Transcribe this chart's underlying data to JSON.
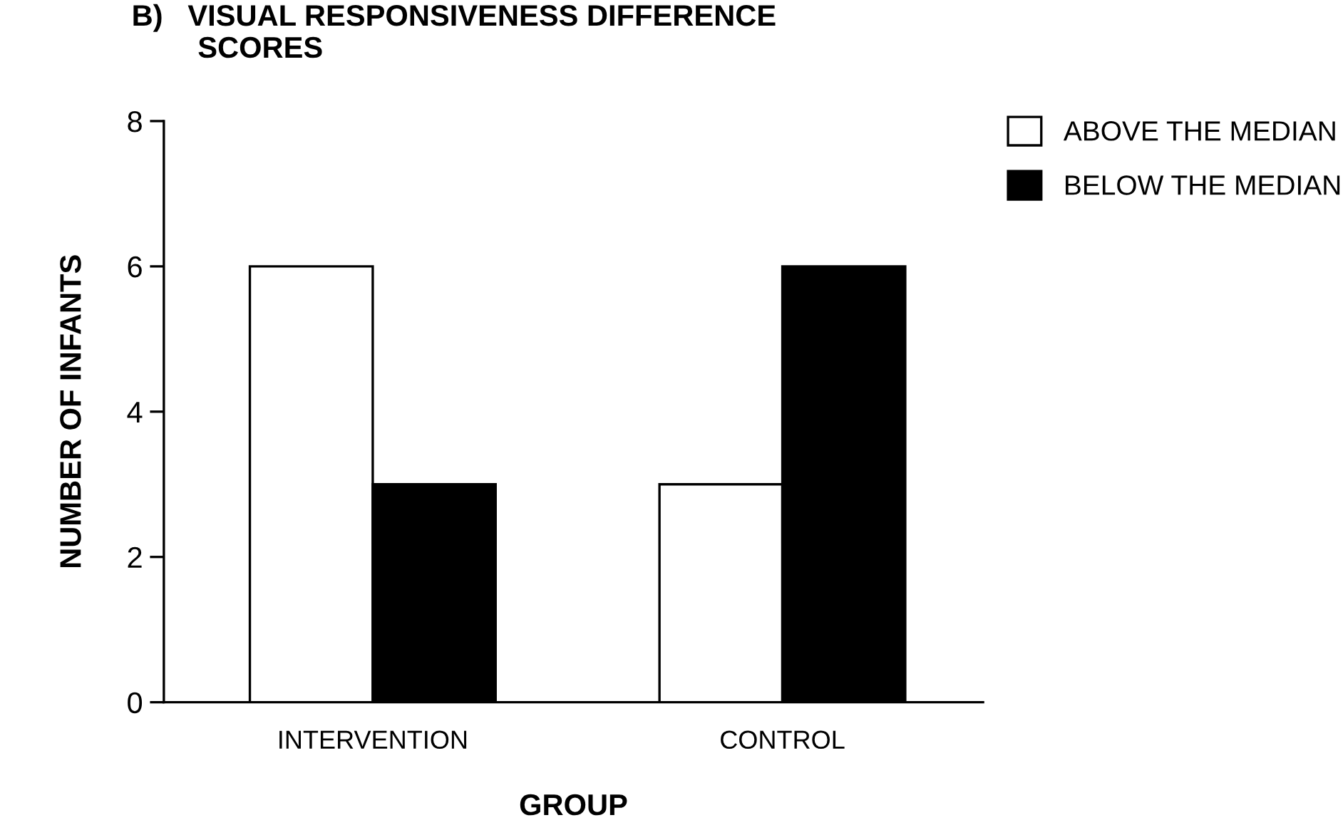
{
  "chart_data": {
    "type": "bar",
    "title": "B)   VISUAL RESPONSIVENESS DIFFERENCE\n        SCORES",
    "xlabel": "GROUP",
    "ylabel": "NUMBER OF INFANTS",
    "categories": [
      "INTERVENTION",
      "CONTROL"
    ],
    "series": [
      {
        "name": "ABOVE THE MEDIAN",
        "color": "#ffffff",
        "values": [
          6,
          3
        ]
      },
      {
        "name": "BELOW THE MEDIAN",
        "color": "#000000",
        "values": [
          3,
          6
        ]
      }
    ],
    "ylim": [
      0,
      8
    ],
    "yticks": [
      0,
      2,
      4,
      6,
      8
    ],
    "grid": false,
    "legend": "top right"
  }
}
